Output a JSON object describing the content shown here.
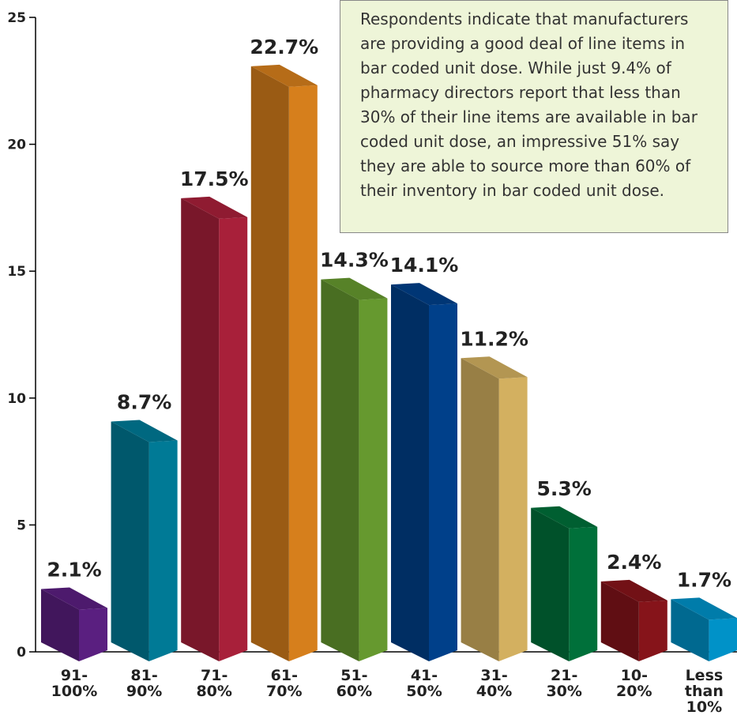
{
  "chart_data": {
    "type": "bar3d",
    "categories": [
      "91-\n100%",
      "81-\n90%",
      "71-\n80%",
      "61-\n70%",
      "51-\n60%",
      "41-\n50%",
      "31-\n40%",
      "21-\n30%",
      "10-\n20%",
      "Less\nthan\n10%"
    ],
    "values": [
      2.1,
      8.7,
      17.5,
      22.7,
      14.3,
      14.1,
      11.2,
      5.3,
      2.4,
      1.7
    ],
    "value_labels": [
      "2.1%",
      "8.7%",
      "17.5%",
      "22.7%",
      "14.3%",
      "14.1%",
      "11.2%",
      "5.3%",
      "2.4%",
      "1.7%"
    ],
    "colors": [
      "#5a1f80",
      "#007a96",
      "#a8203a",
      "#d67f1c",
      "#66992f",
      "#00408a",
      "#d3b060",
      "#00703a",
      "#86141a",
      "#0092c8"
    ],
    "ylim": [
      0,
      25
    ],
    "yticks": [
      0,
      5,
      10,
      15,
      20,
      25
    ],
    "annotation": "Respondents indicate that manufacturers are providing a good deal of line items in bar coded unit dose. While just 9.4% of pharmacy directors report that less than 30% of their line items are available in bar coded unit dose, an impressive 51% say they are able to source more than 60% of their inventory in bar coded unit dose."
  }
}
